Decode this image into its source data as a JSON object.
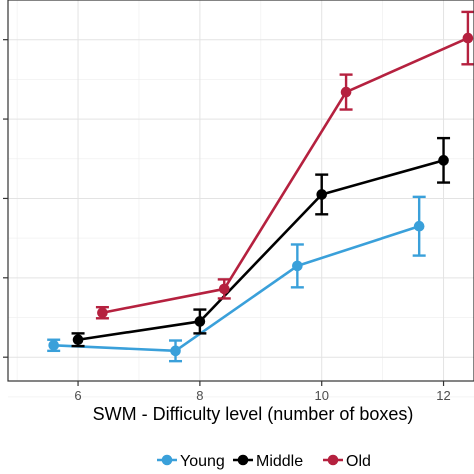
{
  "chart_data": {
    "type": "line",
    "xlabel": "SWM - Difficulty level (number of boxes)",
    "ylabel": "",
    "title": "",
    "x_ticks": [
      "6",
      "8",
      "10",
      "12"
    ],
    "xlim": [
      4.85,
      12.5
    ],
    "ylim": [
      -0.3,
      4.5
    ],
    "grid": true,
    "legend": "bottom",
    "series": [
      {
        "name": "Young",
        "color": "#3aa0da",
        "x": [
          5.6,
          7.6,
          9.6,
          11.6
        ],
        "y": [
          0.15,
          0.08,
          1.15,
          1.65
        ],
        "err_low": [
          0.07,
          0.13,
          0.27,
          0.37
        ],
        "err_high": [
          0.07,
          0.13,
          0.27,
          0.37
        ]
      },
      {
        "name": "Middle",
        "color": "#000000",
        "x": [
          6.0,
          8.0,
          10.0,
          12.0
        ],
        "y": [
          0.22,
          0.45,
          2.05,
          2.48
        ],
        "err_low": [
          0.08,
          0.15,
          0.25,
          0.28
        ],
        "err_high": [
          0.08,
          0.15,
          0.25,
          0.28
        ]
      },
      {
        "name": "Old",
        "color": "#b5213f",
        "x": [
          6.4,
          8.4,
          10.4,
          12.4
        ],
        "y": [
          0.56,
          0.86,
          3.34,
          4.02
        ],
        "err_low": [
          0.07,
          0.12,
          0.22,
          0.33
        ],
        "err_high": [
          0.07,
          0.12,
          0.22,
          0.33
        ]
      }
    ]
  }
}
